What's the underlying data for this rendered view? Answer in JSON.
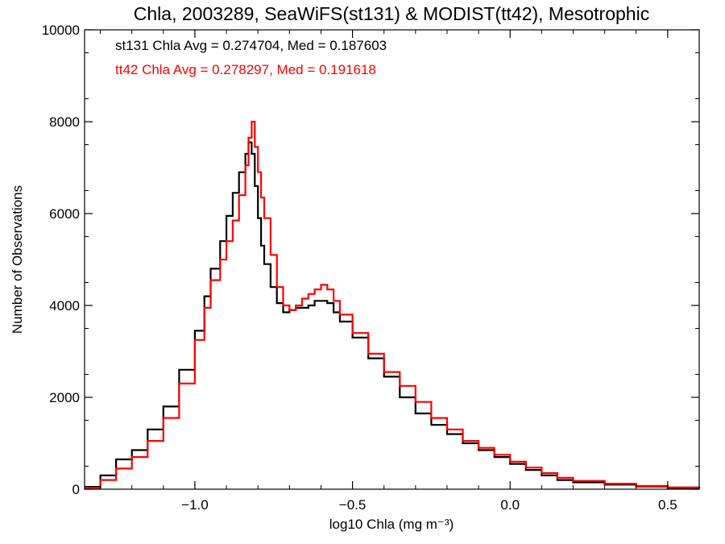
{
  "chart_data": {
    "type": "line",
    "title": "Chla, 2003289, SeaWiFS(st131) & MODIST(tt42), Mesotrophic",
    "xlabel": "log10 Chla (mg m⁻³)",
    "ylabel": "Number of Observations",
    "xlim": [
      -1.35,
      0.6
    ],
    "ylim": [
      0,
      10000
    ],
    "xticks": [
      -1.0,
      -0.5,
      0.0,
      0.5
    ],
    "xtick_labels": [
      "−1.0",
      "−0.5",
      "0.0",
      "0.5"
    ],
    "yticks": [
      0,
      2000,
      4000,
      6000,
      8000,
      10000
    ],
    "ytick_labels": [
      "0",
      "2000",
      "4000",
      "6000",
      "8000",
      "10000"
    ],
    "grid": false,
    "style": "histogram-step",
    "annotations": [
      {
        "text": "st131 Chla Avg = 0.274704, Med = 0.187603",
        "color": "#000000"
      },
      {
        "text": "tt42 Chla Avg = 0.278297, Med = 0.191618",
        "color": "#ff0000"
      }
    ],
    "series": [
      {
        "color": "#000000",
        "x": [
          -1.35,
          -1.3,
          -1.25,
          -1.2,
          -1.15,
          -1.1,
          -1.05,
          -1.0,
          -0.97,
          -0.95,
          -0.92,
          -0.9,
          -0.88,
          -0.86,
          -0.84,
          -0.83,
          -0.82,
          -0.81,
          -0.8,
          -0.79,
          -0.78,
          -0.76,
          -0.74,
          -0.72,
          -0.7,
          -0.68,
          -0.66,
          -0.64,
          -0.62,
          -0.6,
          -0.58,
          -0.56,
          -0.54,
          -0.5,
          -0.45,
          -0.4,
          -0.35,
          -0.3,
          -0.25,
          -0.2,
          -0.15,
          -0.1,
          -0.05,
          0.0,
          0.05,
          0.1,
          0.15,
          0.2,
          0.3,
          0.4,
          0.5,
          0.6
        ],
        "y": [
          50,
          300,
          650,
          850,
          1300,
          1800,
          2600,
          3450,
          4200,
          4800,
          5400,
          5950,
          6450,
          6900,
          7300,
          7550,
          7300,
          6600,
          5900,
          5300,
          4900,
          4400,
          4050,
          3850,
          3900,
          3950,
          3950,
          4000,
          4100,
          4100,
          4050,
          3850,
          3650,
          3300,
          2850,
          2450,
          2000,
          1650,
          1400,
          1200,
          1000,
          850,
          700,
          550,
          420,
          300,
          200,
          150,
          100,
          60,
          30,
          20
        ]
      },
      {
        "color": "#ff0000",
        "x": [
          -1.35,
          -1.3,
          -1.25,
          -1.2,
          -1.15,
          -1.1,
          -1.05,
          -1.0,
          -0.97,
          -0.95,
          -0.92,
          -0.9,
          -0.88,
          -0.86,
          -0.84,
          -0.83,
          -0.82,
          -0.81,
          -0.8,
          -0.79,
          -0.78,
          -0.76,
          -0.74,
          -0.72,
          -0.7,
          -0.68,
          -0.66,
          -0.64,
          -0.62,
          -0.6,
          -0.58,
          -0.56,
          -0.54,
          -0.5,
          -0.45,
          -0.4,
          -0.35,
          -0.3,
          -0.25,
          -0.2,
          -0.15,
          -0.1,
          -0.05,
          0.0,
          0.05,
          0.1,
          0.15,
          0.2,
          0.3,
          0.4,
          0.5,
          0.6
        ],
        "y": [
          30,
          200,
          450,
          700,
          1050,
          1550,
          2300,
          3250,
          3950,
          4550,
          5000,
          5400,
          5850,
          6400,
          7050,
          7650,
          8000,
          7450,
          6900,
          6350,
          5900,
          5100,
          4400,
          4000,
          3900,
          4000,
          4150,
          4250,
          4350,
          4450,
          4350,
          4100,
          3800,
          3400,
          2950,
          2550,
          2250,
          1900,
          1550,
          1300,
          1050,
          900,
          750,
          600,
          470,
          350,
          250,
          180,
          120,
          70,
          40,
          20
        ]
      }
    ]
  }
}
